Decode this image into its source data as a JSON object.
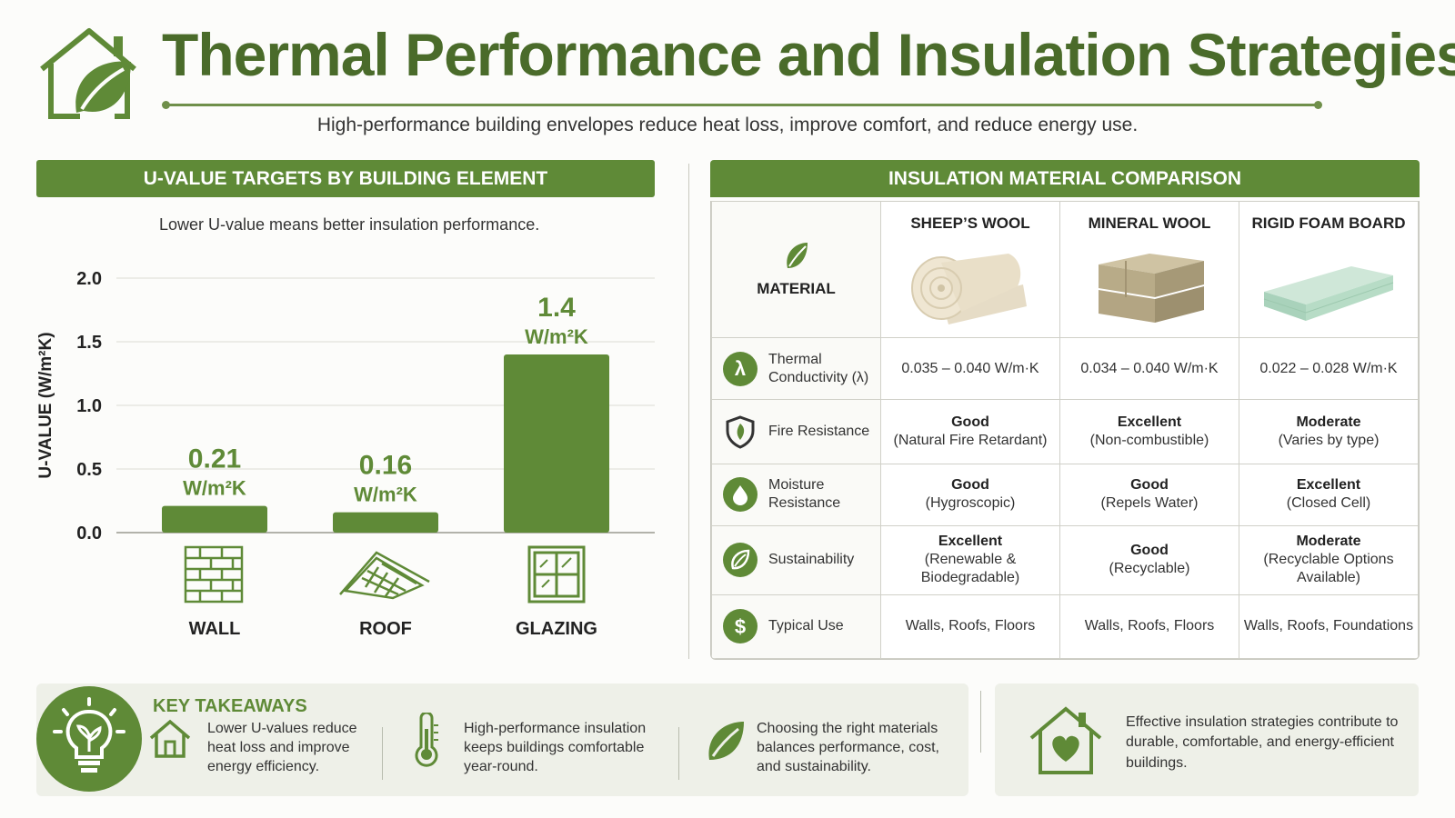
{
  "page": {
    "title": "Thermal Performance and Insulation Strategies",
    "subtitle": "High-performance building envelopes reduce heat loss, improve comfort, and reduce energy use.",
    "logo_icon": "house-leaf-icon",
    "accent_color": "#5f8a37"
  },
  "left_panel": {
    "header": "U-VALUE TARGETS BY BUILDING ELEMENT",
    "note": "Lower U-value means better insulation performance."
  },
  "chart_data": {
    "type": "bar",
    "title": "U-VALUE TARGETS BY BUILDING ELEMENT",
    "categories": [
      "WALL",
      "ROOF",
      "GLAZING"
    ],
    "values": [
      0.21,
      0.16,
      1.4
    ],
    "data_labels": [
      "0.21",
      "0.16",
      "1.4"
    ],
    "unit_label": "W/m²K",
    "ylabel": "U-VALUE (W/m²K)",
    "xlabel": "",
    "ylim": [
      0,
      2.0
    ],
    "yticks": [
      "0.0",
      "0.5",
      "1.0",
      "1.5",
      "2.0"
    ],
    "grid": true,
    "bar_color": "#5f8a37",
    "category_icons": [
      "brick-wall-icon",
      "roof-icon",
      "window-icon"
    ]
  },
  "right_panel": {
    "header": "INSULATION MATERIAL COMPARISON",
    "corner_label": "MATERIAL",
    "corner_icon": "leaf-icon",
    "materials": [
      {
        "name": "SHEEP’S WOOL",
        "image": "wool-roll-image"
      },
      {
        "name": "MINERAL WOOL",
        "image": "mineral-wool-batts-image"
      },
      {
        "name": "RIGID FOAM BOARD",
        "image": "foam-board-image"
      }
    ],
    "rows": [
      {
        "label": "Thermal Conductivity (λ)",
        "icon": "lambda-icon",
        "glyph": "λ",
        "cells": [
          {
            "main": "",
            "sub": "0.035 – 0.040 W/m·K"
          },
          {
            "main": "",
            "sub": "0.034 – 0.040 W/m·K"
          },
          {
            "main": "",
            "sub": "0.022 – 0.028 W/m·K"
          }
        ]
      },
      {
        "label": "Fire Resistance",
        "icon": "shield-icon",
        "glyph": "🛡",
        "cells": [
          {
            "main": "Good",
            "sub": "(Natural Fire Retardant)"
          },
          {
            "main": "Excellent",
            "sub": "(Non-combustible)"
          },
          {
            "main": "Moderate",
            "sub": "(Varies by type)"
          }
        ]
      },
      {
        "label": "Moisture Resistance",
        "icon": "water-drop-icon",
        "glyph": "💧",
        "cells": [
          {
            "main": "Good",
            "sub": "(Hygroscopic)"
          },
          {
            "main": "Good",
            "sub": "(Repels Water)"
          },
          {
            "main": "Excellent",
            "sub": "(Closed Cell)"
          }
        ]
      },
      {
        "label": "Sustainability",
        "icon": "leaf-icon",
        "glyph": "❦",
        "cells": [
          {
            "main": "Excellent",
            "sub": "(Renewable & Biodegradable)"
          },
          {
            "main": "Good",
            "sub": "(Recyclable)"
          },
          {
            "main": "Moderate",
            "sub": "(Recyclable Options Available)"
          }
        ]
      },
      {
        "label": "Typical Use",
        "icon": "dollar-icon",
        "glyph": "$",
        "cells": [
          {
            "main": "",
            "sub": "Walls, Roofs, Floors"
          },
          {
            "main": "",
            "sub": "Walls, Roofs, Floors"
          },
          {
            "main": "",
            "sub": "Walls, Roofs, Foundations"
          }
        ]
      }
    ]
  },
  "takeaways": {
    "title": "KEY TAKEAWAYS",
    "badge_icon": "lightbulb-leaf-icon",
    "items": [
      {
        "icon": "house-icon",
        "text": "Lower U-values reduce heat loss and improve energy efficiency."
      },
      {
        "icon": "thermometer-icon",
        "text": "High-performance insulation keeps buildings comfortable year-round."
      },
      {
        "icon": "leaf-icon",
        "text": "Choosing the right materials balances performance, cost, and sustainability."
      }
    ]
  },
  "closing": {
    "icon": "house-heart-icon",
    "text": "Effective insulation strategies contribute to durable, comfortable, and energy-efficient buildings."
  }
}
